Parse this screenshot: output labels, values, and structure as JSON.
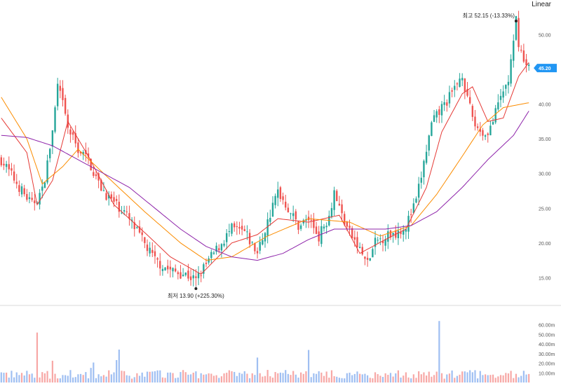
{
  "toolbar": {
    "scale_mode": "Linear"
  },
  "colors": {
    "up": "#26a69a",
    "down": "#ef5350",
    "ma_short": "#e53935",
    "ma_mid": "#fb8c00",
    "ma_long": "#8e24aa",
    "price_tag": "#2196f3",
    "volume_up": "#f7a8a6",
    "volume_down": "#9fbff2",
    "grid": "#eeeeee",
    "axis_text": "#555555"
  },
  "annotations": {
    "high_label": "최고  52.15 (-13.33%)",
    "low_label": "최저  13.90 (+225.30%)",
    "current_price": "45.20"
  },
  "chart_data": {
    "type": "candlestick",
    "price_axis": {
      "range": [
        11,
        55
      ],
      "ticks": [
        "15.00",
        "20.00",
        "25.00",
        "30.00",
        "35.00",
        "40.00",
        "45.00",
        "50.00"
      ]
    },
    "volume_axis": {
      "range": [
        0,
        70
      ],
      "ticks": [
        "10.00m",
        "20.00m",
        "30.00m",
        "40.00m",
        "50.00m",
        "60.00m"
      ]
    },
    "close_path": [
      [
        0,
        32.0
      ],
      [
        8,
        27.5
      ],
      [
        12,
        25.5
      ],
      [
        16,
        27.5
      ],
      [
        18,
        31.5
      ],
      [
        20,
        36.0
      ],
      [
        22,
        42.5
      ],
      [
        24,
        40.0
      ],
      [
        26,
        36.5
      ],
      [
        30,
        33.5
      ],
      [
        34,
        32.0
      ],
      [
        38,
        28.5
      ],
      [
        42,
        26.5
      ],
      [
        48,
        24.5
      ],
      [
        54,
        21.0
      ],
      [
        60,
        17.5
      ],
      [
        66,
        16.0
      ],
      [
        72,
        15.5
      ],
      [
        76,
        14.6
      ],
      [
        78,
        15.8
      ],
      [
        82,
        18.0
      ],
      [
        86,
        20.0
      ],
      [
        90,
        22.0
      ],
      [
        95,
        21.5
      ],
      [
        100,
        18.5
      ],
      [
        104,
        23.0
      ],
      [
        108,
        27.5
      ],
      [
        112,
        25.0
      ],
      [
        116,
        22.5
      ],
      [
        120,
        23.5
      ],
      [
        124,
        21.0
      ],
      [
        128,
        24.0
      ],
      [
        130,
        27.5
      ],
      [
        133,
        24.0
      ],
      [
        136,
        21.5
      ],
      [
        140,
        19.0
      ],
      [
        143,
        17.0
      ],
      [
        146,
        20.0
      ],
      [
        150,
        21.0
      ],
      [
        154,
        21.5
      ],
      [
        158,
        22.5
      ],
      [
        162,
        26.0
      ],
      [
        165,
        31.5
      ],
      [
        168,
        37.0
      ],
      [
        172,
        39.5
      ],
      [
        176,
        41.5
      ],
      [
        180,
        44.5
      ],
      [
        182,
        40.5
      ],
      [
        185,
        37.0
      ],
      [
        189,
        35.5
      ],
      [
        192,
        37.5
      ],
      [
        195,
        41.0
      ],
      [
        198,
        43.5
      ],
      [
        200,
        48.5
      ],
      [
        201,
        52.15
      ],
      [
        202,
        49.0
      ],
      [
        204,
        46.0
      ],
      [
        206,
        45.2
      ]
    ],
    "moving_averages": [
      {
        "name": "MA-short",
        "values": [
          [
            0,
            38.0
          ],
          [
            10,
            33.0
          ],
          [
            14,
            25.5
          ],
          [
            20,
            29.0
          ],
          [
            26,
            37.5
          ],
          [
            34,
            32.5
          ],
          [
            44,
            25.5
          ],
          [
            56,
            21.5
          ],
          [
            66,
            18.0
          ],
          [
            78,
            15.5
          ],
          [
            90,
            20.0
          ],
          [
            100,
            21.2
          ],
          [
            108,
            23.5
          ],
          [
            120,
            23.0
          ],
          [
            132,
            24.0
          ],
          [
            140,
            18.5
          ],
          [
            150,
            20.5
          ],
          [
            158,
            22.0
          ],
          [
            166,
            28.0
          ],
          [
            172,
            36.0
          ],
          [
            180,
            41.5
          ],
          [
            184,
            42.5
          ],
          [
            190,
            37.5
          ],
          [
            196,
            38.0
          ],
          [
            202,
            44.0
          ],
          [
            206,
            46.0
          ]
        ]
      },
      {
        "name": "MA-mid",
        "values": [
          [
            0,
            41.0
          ],
          [
            10,
            35.0
          ],
          [
            16,
            28.5
          ],
          [
            24,
            31.0
          ],
          [
            30,
            33.5
          ],
          [
            40,
            30.0
          ],
          [
            56,
            24.5
          ],
          [
            70,
            20.0
          ],
          [
            80,
            17.5
          ],
          [
            90,
            18.0
          ],
          [
            104,
            21.0
          ],
          [
            120,
            23.5
          ],
          [
            136,
            23.0
          ],
          [
            148,
            21.0
          ],
          [
            160,
            22.5
          ],
          [
            170,
            27.0
          ],
          [
            180,
            32.5
          ],
          [
            188,
            37.0
          ],
          [
            196,
            39.5
          ],
          [
            206,
            40.2
          ]
        ]
      },
      {
        "name": "MA-long",
        "values": [
          [
            0,
            35.5
          ],
          [
            10,
            35.2
          ],
          [
            20,
            34.0
          ],
          [
            30,
            32.0
          ],
          [
            40,
            30.0
          ],
          [
            50,
            28.0
          ],
          [
            60,
            25.0
          ],
          [
            70,
            22.0
          ],
          [
            80,
            19.5
          ],
          [
            90,
            18.0
          ],
          [
            100,
            17.5
          ],
          [
            110,
            18.5
          ],
          [
            120,
            20.5
          ],
          [
            130,
            22.0
          ],
          [
            140,
            22.0
          ],
          [
            150,
            22.0
          ],
          [
            160,
            22.5
          ],
          [
            170,
            24.5
          ],
          [
            180,
            28.0
          ],
          [
            190,
            32.0
          ],
          [
            200,
            35.5
          ],
          [
            206,
            39.0
          ]
        ]
      }
    ],
    "high": {
      "value": 52.15,
      "change": "-13.33%"
    },
    "low": {
      "value": 13.9,
      "change": "+225.30%"
    },
    "last": 45.2,
    "legend": "none",
    "grid": false
  }
}
